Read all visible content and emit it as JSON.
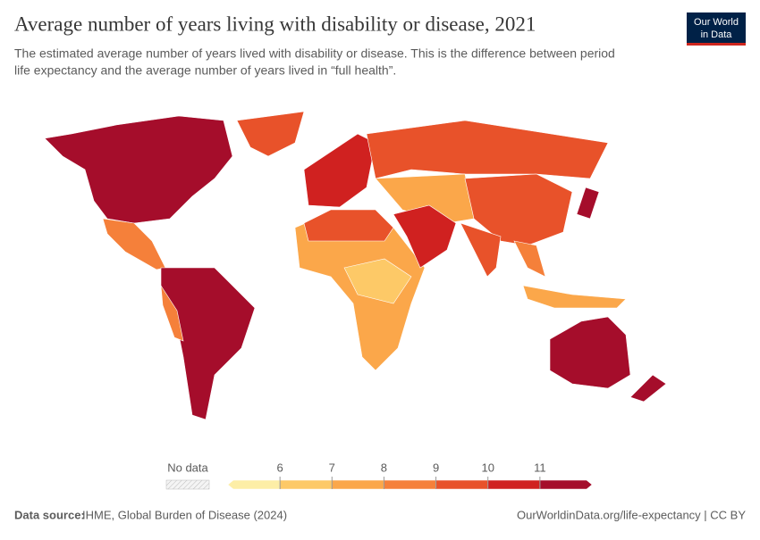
{
  "header": {
    "title": "Average number of years living with disability or disease, 2021",
    "subtitle_lines": [
      "The estimated average number of years lived with disability or disease. This is the difference between period",
      "life expectancy and the average number of years lived in “full health”."
    ],
    "logo_lines": [
      "Our World",
      "in Data"
    ]
  },
  "legend": {
    "no_data": "No data",
    "ticks": [
      6,
      7,
      8,
      9,
      10,
      11
    ],
    "colors": [
      "#fdeea6",
      "#fdc967",
      "#fba74a",
      "#f5803a",
      "#e8522a",
      "#d02120",
      "#a50d2b"
    ]
  },
  "footer": {
    "source_label": "Data source:",
    "source": "IHME, Global Burden of Disease (2024)",
    "link": "OurWorldinData.org/life-expectancy | CC BY"
  }
}
